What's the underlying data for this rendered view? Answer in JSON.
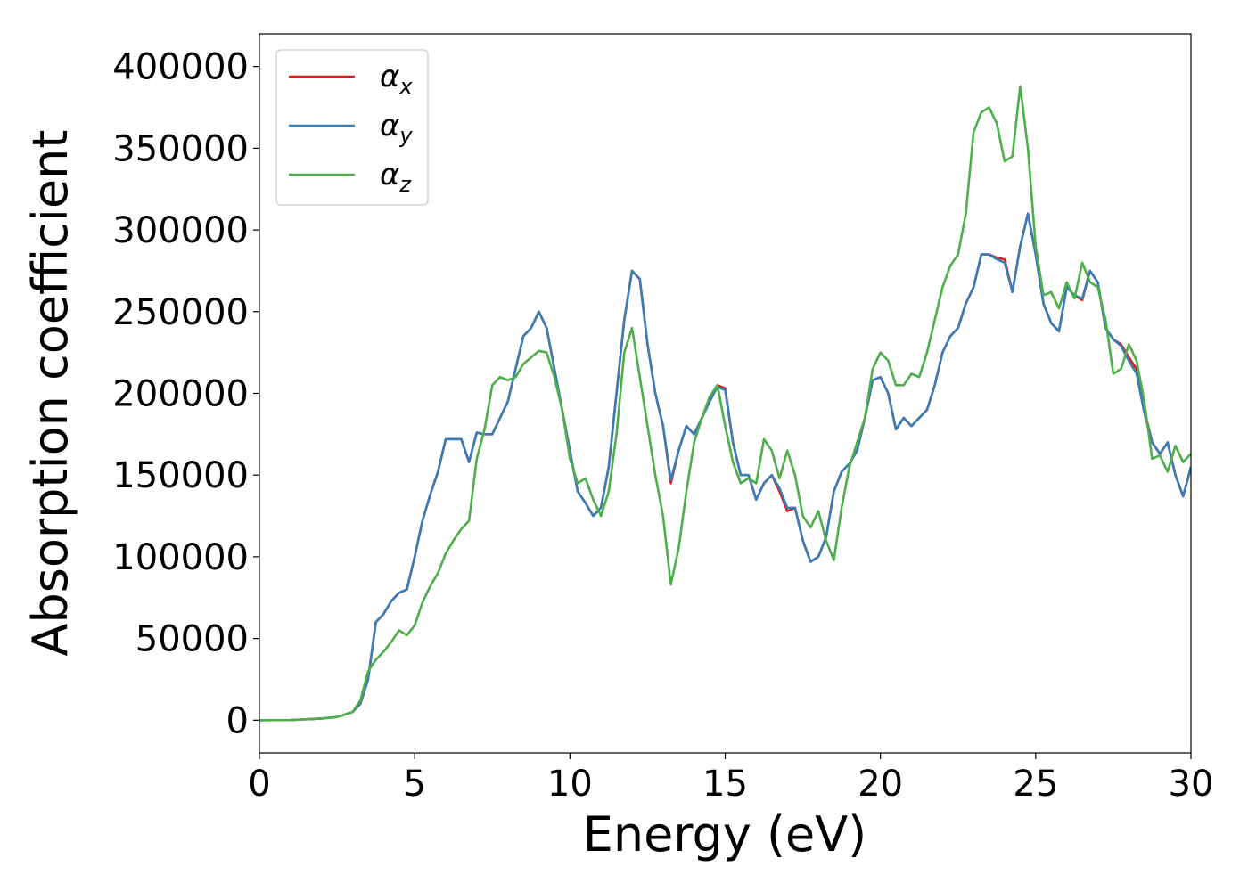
{
  "chart_data": {
    "type": "line",
    "xlabel": "Energy (eV)",
    "ylabel": "Absorption coefficient",
    "xlim": [
      0,
      30
    ],
    "ylim": [
      -20000,
      420000
    ],
    "xticks": [
      0,
      5,
      10,
      15,
      20,
      25,
      30
    ],
    "yticks": [
      0,
      50000,
      100000,
      150000,
      200000,
      250000,
      300000,
      350000,
      400000
    ],
    "legend": "upper left",
    "grid": false,
    "x": [
      0,
      1,
      2,
      2.5,
      3,
      3.25,
      3.5,
      3.75,
      4,
      4.25,
      4.5,
      4.75,
      5,
      5.25,
      5.5,
      5.75,
      6,
      6.25,
      6.5,
      6.75,
      7,
      7.25,
      7.5,
      7.75,
      8,
      8.25,
      8.5,
      8.75,
      9,
      9.25,
      9.5,
      9.75,
      10,
      10.25,
      10.5,
      10.75,
      11,
      11.25,
      11.5,
      11.75,
      12,
      12.25,
      12.5,
      12.75,
      13,
      13.25,
      13.5,
      13.75,
      14,
      14.25,
      14.5,
      14.75,
      15,
      15.25,
      15.5,
      15.75,
      16,
      16.25,
      16.5,
      16.75,
      17,
      17.25,
      17.5,
      17.75,
      18,
      18.25,
      18.5,
      18.75,
      19,
      19.25,
      19.5,
      19.75,
      20,
      20.25,
      20.5,
      20.75,
      21,
      21.25,
      21.5,
      21.75,
      22,
      22.25,
      22.5,
      22.75,
      23,
      23.25,
      23.5,
      23.75,
      24,
      24.25,
      24.5,
      24.75,
      25,
      25.25,
      25.5,
      25.75,
      26,
      26.25,
      26.5,
      26.75,
      27,
      27.25,
      27.5,
      27.75,
      28,
      28.25,
      28.5,
      28.75,
      29,
      29.25,
      29.5,
      29.75,
      30
    ],
    "series": [
      {
        "name": "αx",
        "color": "#e41a1c",
        "values": [
          0,
          100,
          1000,
          2000,
          5000,
          10000,
          25000,
          60000,
          65000,
          73000,
          78000,
          80000,
          100000,
          122000,
          138000,
          152000,
          172000,
          172000,
          172000,
          158000,
          176000,
          175000,
          175000,
          185000,
          195000,
          215000,
          235000,
          240000,
          250000,
          240000,
          215000,
          190000,
          165000,
          140000,
          133000,
          125000,
          130000,
          155000,
          200000,
          245000,
          275000,
          270000,
          230000,
          200000,
          180000,
          145000,
          165000,
          180000,
          175000,
          185000,
          195000,
          205000,
          203000,
          170000,
          150000,
          150000,
          135000,
          145000,
          150000,
          140000,
          128000,
          130000,
          110000,
          97000,
          100000,
          112000,
          140000,
          152000,
          157000,
          165000,
          185000,
          208000,
          210000,
          200000,
          178000,
          185000,
          180000,
          185000,
          190000,
          205000,
          225000,
          235000,
          240000,
          255000,
          265000,
          285000,
          285000,
          283000,
          282000,
          262000,
          290000,
          310000,
          285000,
          255000,
          243000,
          238000,
          265000,
          260000,
          257000,
          275000,
          268000,
          240000,
          233000,
          230000,
          222000,
          215000,
          190000,
          170000,
          163000,
          170000,
          150000,
          137000,
          155000
        ]
      },
      {
        "name": "αy",
        "color": "#377eb8",
        "values": [
          0,
          100,
          1000,
          2000,
          5000,
          10000,
          25000,
          60000,
          65000,
          73000,
          78000,
          80000,
          100000,
          122000,
          138000,
          152000,
          172000,
          172000,
          172000,
          158000,
          176000,
          175000,
          175000,
          185000,
          195000,
          215000,
          235000,
          240000,
          250000,
          240000,
          215000,
          190000,
          165000,
          140000,
          133000,
          125000,
          130000,
          155000,
          200000,
          245000,
          275000,
          270000,
          230000,
          200000,
          180000,
          147000,
          165000,
          180000,
          175000,
          185000,
          195000,
          204000,
          202000,
          170000,
          150000,
          150000,
          135000,
          145000,
          150000,
          142000,
          130000,
          130000,
          110000,
          97000,
          100000,
          112000,
          140000,
          152000,
          157000,
          165000,
          185000,
          208000,
          210000,
          200000,
          178000,
          185000,
          180000,
          185000,
          190000,
          205000,
          225000,
          235000,
          240000,
          255000,
          265000,
          285000,
          285000,
          282000,
          280000,
          262000,
          290000,
          310000,
          285000,
          255000,
          243000,
          238000,
          265000,
          260000,
          258000,
          275000,
          268000,
          240000,
          233000,
          229000,
          220000,
          212000,
          188000,
          170000,
          163000,
          170000,
          150000,
          137000,
          155000
        ]
      },
      {
        "name": "αz",
        "color": "#4daf4a",
        "values": [
          0,
          100,
          1000,
          2000,
          5000,
          12000,
          30000,
          37000,
          42000,
          48000,
          55000,
          52000,
          58000,
          72000,
          82000,
          90000,
          102000,
          110000,
          117000,
          122000,
          160000,
          178000,
          205000,
          210000,
          208000,
          210000,
          218000,
          222000,
          226000,
          225000,
          210000,
          190000,
          160000,
          145000,
          148000,
          135000,
          125000,
          140000,
          175000,
          225000,
          240000,
          210000,
          180000,
          150000,
          125000,
          83000,
          105000,
          140000,
          170000,
          185000,
          198000,
          205000,
          180000,
          158000,
          145000,
          148000,
          145000,
          172000,
          165000,
          148000,
          165000,
          150000,
          125000,
          118000,
          128000,
          110000,
          98000,
          130000,
          155000,
          170000,
          185000,
          215000,
          225000,
          220000,
          205000,
          205000,
          212000,
          210000,
          225000,
          245000,
          265000,
          278000,
          285000,
          310000,
          360000,
          372000,
          375000,
          365000,
          342000,
          345000,
          388000,
          350000,
          290000,
          260000,
          262000,
          252000,
          268000,
          258000,
          280000,
          268000,
          265000,
          245000,
          212000,
          215000,
          230000,
          220000,
          195000,
          160000,
          162000,
          152000,
          168000,
          158000,
          163000
        ]
      }
    ]
  }
}
